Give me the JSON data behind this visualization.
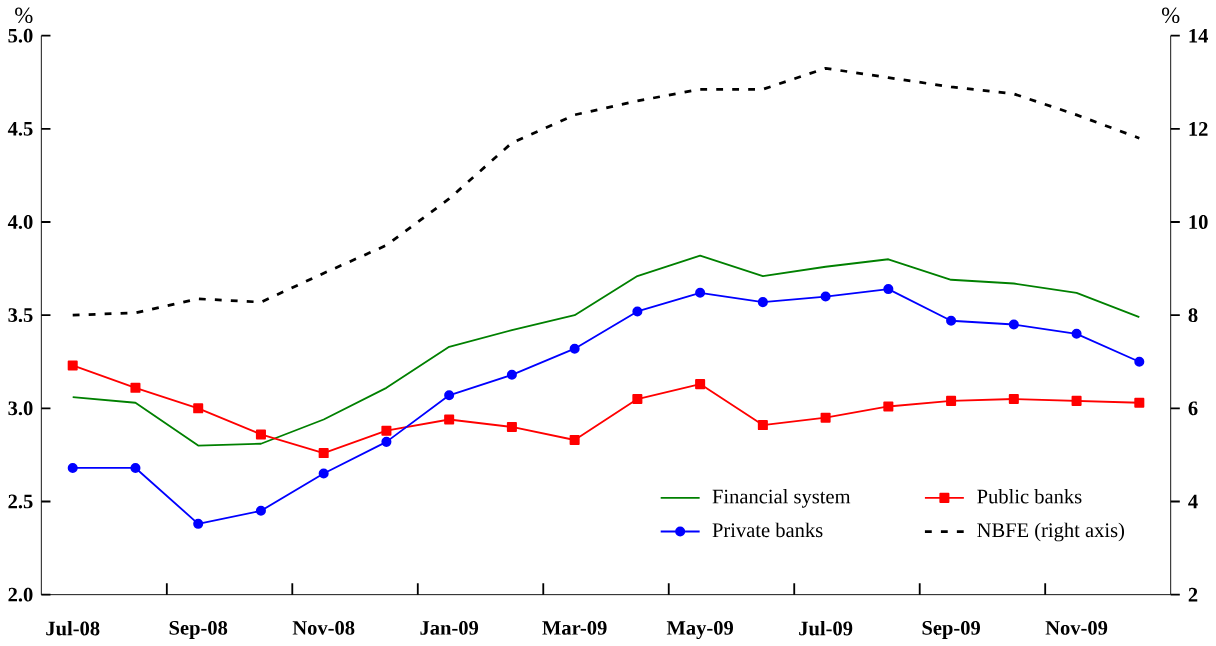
{
  "chart_data": {
    "type": "line",
    "ylabel": "%",
    "y2label": "%",
    "categories": [
      "Jul-08",
      null,
      "Sep-08",
      null,
      "Nov-08",
      null,
      "Jan-09",
      null,
      "Mar-09",
      null,
      "May-09",
      null,
      "Jul-09",
      null,
      "Sep-09",
      null,
      "Nov-09",
      null
    ],
    "series": [
      {
        "name": "Financial system",
        "color": "#008000",
        "marker": "none",
        "line_style": "solid",
        "values": [
          3.06,
          3.03,
          2.8,
          2.81,
          2.94,
          3.11,
          3.33,
          3.42,
          3.5,
          3.71,
          3.82,
          3.71,
          3.76,
          3.8,
          3.69,
          3.67,
          3.62,
          3.49
        ]
      },
      {
        "name": "Public banks",
        "color": "#ff0000",
        "marker": "square",
        "line_style": "solid",
        "values": [
          3.23,
          3.11,
          3.0,
          2.86,
          2.76,
          2.88,
          2.94,
          2.9,
          2.83,
          3.05,
          3.13,
          2.91,
          2.95,
          3.01,
          3.04,
          3.05,
          3.04,
          3.03
        ]
      },
      {
        "name": "Private banks",
        "color": "#0000ff",
        "marker": "circle",
        "line_style": "solid",
        "values": [
          2.68,
          2.68,
          2.38,
          2.45,
          2.65,
          2.82,
          3.07,
          3.18,
          3.32,
          3.52,
          3.62,
          3.57,
          3.6,
          3.64,
          3.47,
          3.45,
          3.4,
          3.25
        ]
      },
      {
        "name": "NBFE (right axis)",
        "color": "#000000",
        "marker": "none",
        "line_style": "dashed",
        "axis": "y2",
        "values": [
          8.0,
          8.05,
          8.35,
          8.28,
          8.9,
          9.5,
          10.5,
          11.7,
          12.3,
          12.6,
          12.85,
          12.85,
          13.3,
          13.1,
          12.9,
          12.75,
          12.3,
          11.8
        ]
      }
    ],
    "ylim": [
      2.0,
      5.0
    ],
    "yticks": [
      {
        "value": 2.0,
        "label": "2.0"
      },
      {
        "value": 2.5,
        "label": "2.5"
      },
      {
        "value": 3.0,
        "label": "3.0"
      },
      {
        "value": 3.5,
        "label": "3.5"
      },
      {
        "value": 4.0,
        "label": "4.0"
      },
      {
        "value": 4.5,
        "label": "4.5"
      },
      {
        "value": 5.0,
        "label": "5.0"
      }
    ],
    "y2lim": [
      2,
      14
    ],
    "y2ticks": [
      2,
      4,
      6,
      8,
      10,
      12,
      14
    ],
    "grid": false,
    "legend": "bottom right"
  }
}
